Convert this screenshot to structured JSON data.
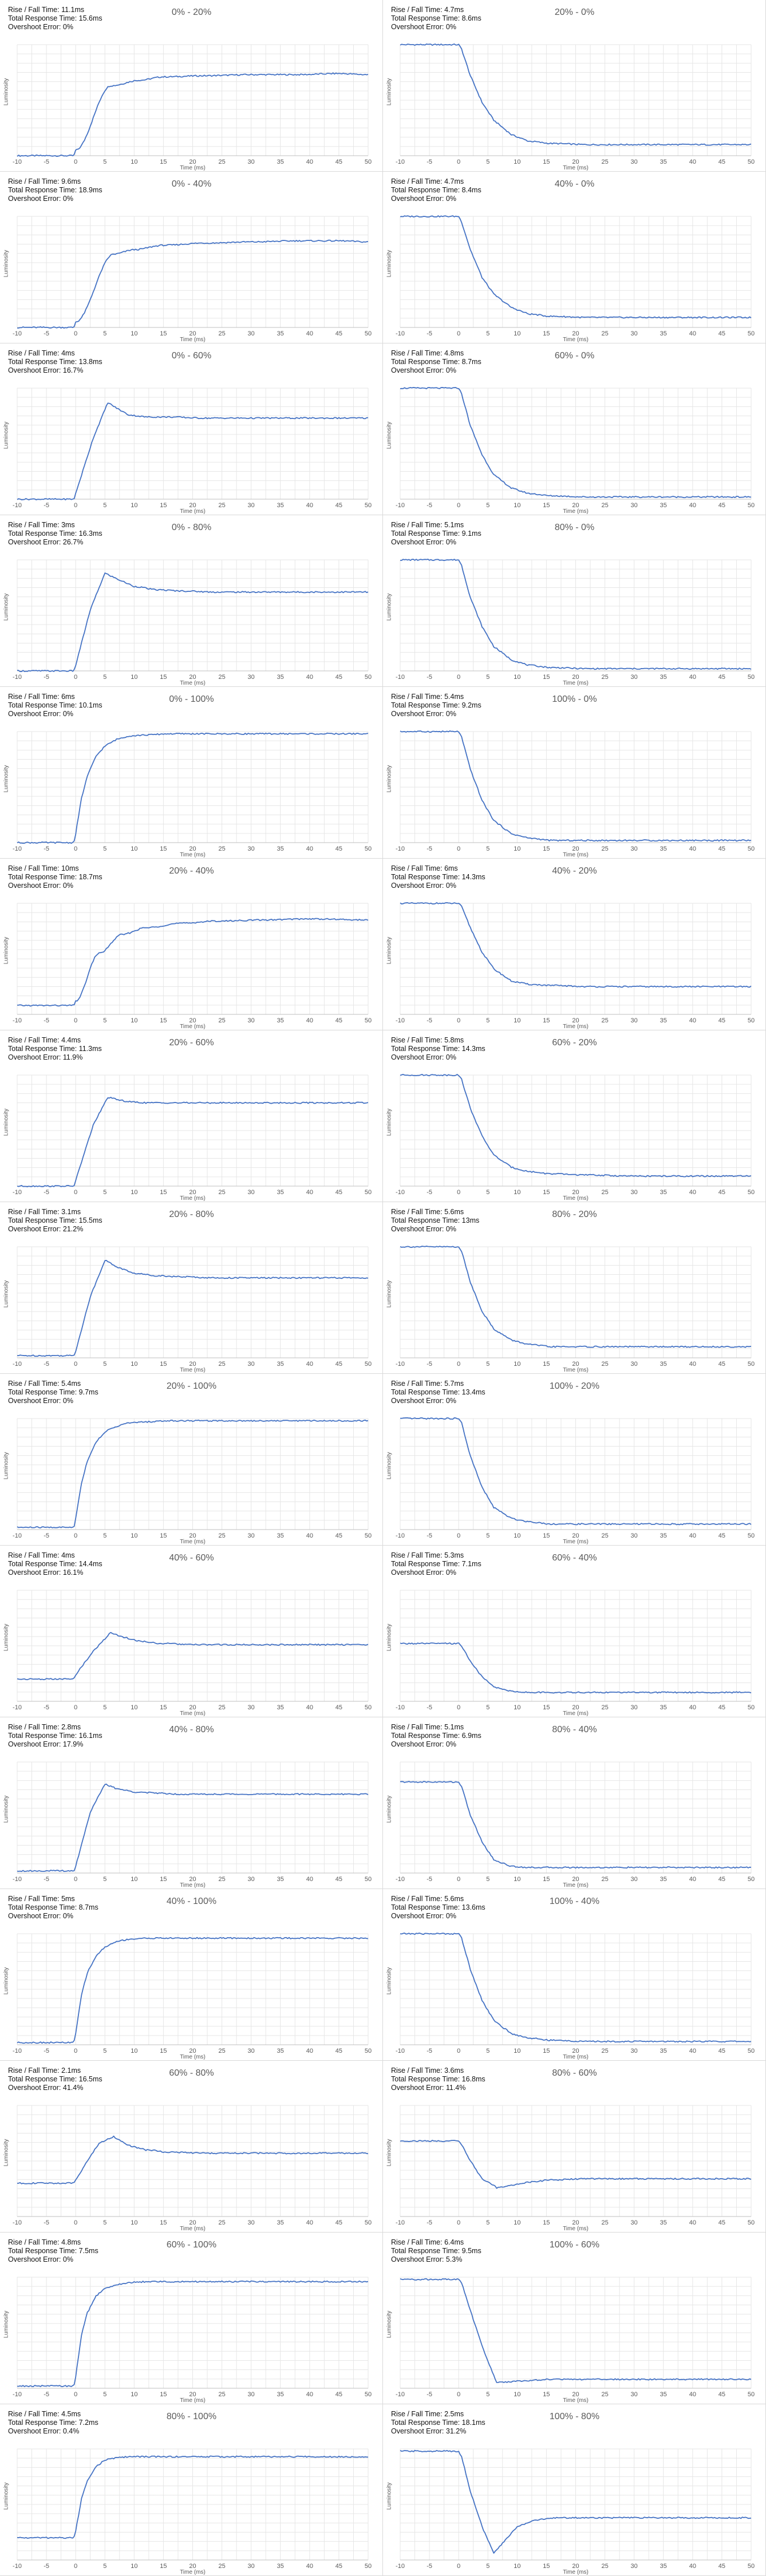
{
  "chart_common": {
    "type": "line",
    "xlabel": "Time (ms)",
    "ylabel": "Luminosity",
    "xlim": [
      -10,
      50
    ],
    "xticks": [
      -10,
      -5,
      0,
      5,
      10,
      15,
      20,
      25,
      30,
      35,
      40,
      45,
      50
    ],
    "grid": true,
    "line_color": "#4472c4"
  },
  "chart_data": [
    {
      "title": "0% - 20%",
      "stats": [
        "Rise / Fall Time: 11.1ms",
        "Total Response Time: 15.6ms",
        "Overshoot Error: 0%"
      ],
      "x": [
        -10,
        -0.3,
        0,
        6,
        11,
        15,
        22,
        30,
        38,
        45,
        50
      ],
      "values": [
        0,
        0,
        0.05,
        0.63,
        0.68,
        0.71,
        0.72,
        0.73,
        0.73,
        0.74,
        0.73
      ]
    },
    {
      "title": "20% - 0%",
      "stats": [
        "Rise / Fall Time: 4.7ms",
        "Total Response Time: 8.6ms",
        "Overshoot Error: 0%"
      ],
      "x": [
        -10,
        0,
        0.5,
        2,
        4,
        6,
        9,
        12,
        16,
        22,
        30,
        50
      ],
      "values": [
        1,
        1,
        0.96,
        0.72,
        0.48,
        0.32,
        0.19,
        0.13,
        0.11,
        0.1,
        0.1,
        0.1
      ]
    },
    {
      "title": "0% - 40%",
      "stats": [
        "Rise / Fall Time: 9.6ms",
        "Total Response Time: 18.9ms",
        "Overshoot Error: 0%"
      ],
      "x": [
        -10,
        -0.3,
        0,
        6.5,
        10,
        15,
        22,
        30,
        38,
        45,
        50
      ],
      "values": [
        0,
        0,
        0.05,
        0.66,
        0.7,
        0.74,
        0.76,
        0.77,
        0.78,
        0.78,
        0.77
      ]
    },
    {
      "title": "40% - 0%",
      "stats": [
        "Rise / Fall Time: 4.7ms",
        "Total Response Time: 8.4ms",
        "Overshoot Error: 0%"
      ],
      "x": [
        -10,
        0,
        0.5,
        2,
        4,
        6,
        9,
        12,
        16,
        22,
        30,
        50
      ],
      "values": [
        1,
        1,
        0.95,
        0.7,
        0.45,
        0.3,
        0.18,
        0.12,
        0.1,
        0.09,
        0.09,
        0.09
      ]
    },
    {
      "title": "0% - 60%",
      "stats": [
        "Rise / Fall Time: 4ms",
        "Total Response Time: 13.8ms",
        "Overshoot Error: 16.7%"
      ],
      "x": [
        -10,
        -0.3,
        0,
        3,
        5.5,
        7,
        9,
        12,
        16,
        22,
        30,
        50
      ],
      "values": [
        0,
        0,
        0.05,
        0.55,
        0.87,
        0.82,
        0.76,
        0.74,
        0.74,
        0.73,
        0.73,
        0.73
      ]
    },
    {
      "title": "60% - 0%",
      "stats": [
        "Rise / Fall Time: 4.8ms",
        "Total Response Time: 8.7ms",
        "Overshoot Error: 0%"
      ],
      "x": [
        -10,
        0,
        0.5,
        2,
        4,
        6,
        9,
        12,
        16,
        22,
        30,
        50
      ],
      "values": [
        1,
        1,
        0.95,
        0.66,
        0.4,
        0.22,
        0.1,
        0.05,
        0.03,
        0.02,
        0.02,
        0.02
      ]
    },
    {
      "title": "0% - 80%",
      "stats": [
        "Rise / Fall Time: 3ms",
        "Total Response Time: 16.3ms",
        "Overshoot Error: 26.7%"
      ],
      "x": [
        -10,
        -0.3,
        0,
        2.5,
        5,
        7,
        10,
        14,
        18,
        24,
        32,
        50
      ],
      "values": [
        0,
        0,
        0.05,
        0.55,
        0.88,
        0.83,
        0.76,
        0.73,
        0.72,
        0.71,
        0.71,
        0.71
      ]
    },
    {
      "title": "80% - 0%",
      "stats": [
        "Rise / Fall Time: 5.1ms",
        "Total Response Time: 9.1ms",
        "Overshoot Error: 0%"
      ],
      "x": [
        -10,
        0,
        0.5,
        2,
        4,
        6,
        9,
        12,
        16,
        22,
        30,
        50
      ],
      "values": [
        1,
        1,
        0.95,
        0.66,
        0.4,
        0.22,
        0.1,
        0.05,
        0.03,
        0.02,
        0.02,
        0.02
      ]
    },
    {
      "title": "0% - 100%",
      "stats": [
        "Rise / Fall Time: 6ms",
        "Total Response Time: 10.1ms",
        "Overshoot Error: 0%"
      ],
      "x": [
        -10,
        -0.3,
        0,
        1,
        2,
        3.5,
        5,
        7,
        9,
        12,
        16,
        22,
        50
      ],
      "values": [
        0,
        0,
        0.08,
        0.4,
        0.6,
        0.78,
        0.87,
        0.93,
        0.96,
        0.97,
        0.98,
        0.98,
        0.98
      ]
    },
    {
      "title": "100% - 0%",
      "stats": [
        "Rise / Fall Time: 5.4ms",
        "Total Response Time: 9.2ms",
        "Overshoot Error: 0%"
      ],
      "x": [
        -10,
        0,
        0.5,
        2,
        4,
        6,
        9,
        12,
        16,
        22,
        30,
        50
      ],
      "values": [
        1,
        1,
        0.95,
        0.66,
        0.38,
        0.2,
        0.08,
        0.04,
        0.02,
        0.02,
        0.02,
        0.02
      ]
    },
    {
      "title": "20% - 40%",
      "stats": [
        "Rise / Fall Time: 10ms",
        "Total Response Time: 18.7ms",
        "Overshoot Error: 0%"
      ],
      "x": [
        -10,
        -0.3,
        0,
        4,
        8,
        12,
        18,
        24,
        32,
        40,
        50
      ],
      "values": [
        0.08,
        0.08,
        0.12,
        0.55,
        0.72,
        0.78,
        0.82,
        0.84,
        0.85,
        0.86,
        0.85
      ]
    },
    {
      "title": "40% - 20%",
      "stats": [
        "Rise / Fall Time: 6ms",
        "Total Response Time: 14.3ms",
        "Overshoot Error: 0%"
      ],
      "x": [
        -10,
        0,
        0.5,
        2,
        4,
        6,
        9,
        12,
        16,
        22,
        30,
        50
      ],
      "values": [
        1,
        1,
        0.97,
        0.78,
        0.56,
        0.41,
        0.3,
        0.27,
        0.26,
        0.25,
        0.25,
        0.25
      ]
    },
    {
      "title": "20% - 60%",
      "stats": [
        "Rise / Fall Time: 4.4ms",
        "Total Response Time: 11.3ms",
        "Overshoot Error: 11.9%"
      ],
      "x": [
        -10,
        -0.3,
        0,
        3,
        5.5,
        7,
        9,
        12,
        16,
        22,
        30,
        50
      ],
      "values": [
        0,
        0,
        0.05,
        0.55,
        0.8,
        0.78,
        0.76,
        0.75,
        0.75,
        0.75,
        0.75,
        0.75
      ]
    },
    {
      "title": "60% - 20%",
      "stats": [
        "Rise / Fall Time: 5.8ms",
        "Total Response Time: 14.3ms",
        "Overshoot Error: 0%"
      ],
      "x": [
        -10,
        0,
        0.5,
        2,
        4,
        6,
        9,
        12,
        16,
        22,
        30,
        50
      ],
      "values": [
        1,
        1,
        0.96,
        0.7,
        0.45,
        0.28,
        0.17,
        0.13,
        0.11,
        0.1,
        0.09,
        0.09
      ]
    },
    {
      "title": "20% - 80%",
      "stats": [
        "Rise / Fall Time: 3.1ms",
        "Total Response Time: 15.5ms",
        "Overshoot Error: 21.2%"
      ],
      "x": [
        -10,
        -0.3,
        0,
        2.5,
        5,
        7,
        10,
        14,
        18,
        24,
        32,
        50
      ],
      "values": [
        0.02,
        0.02,
        0.06,
        0.55,
        0.88,
        0.82,
        0.76,
        0.74,
        0.73,
        0.72,
        0.72,
        0.72
      ]
    },
    {
      "title": "80% - 20%",
      "stats": [
        "Rise / Fall Time: 5.6ms",
        "Total Response Time: 13ms",
        "Overshoot Error: 0%"
      ],
      "x": [
        -10,
        0,
        0.5,
        2,
        4,
        6,
        9,
        12,
        16,
        22,
        30,
        50
      ],
      "values": [
        1,
        1,
        0.96,
        0.68,
        0.42,
        0.26,
        0.16,
        0.12,
        0.1,
        0.1,
        0.1,
        0.1
      ]
    },
    {
      "title": "20% - 100%",
      "stats": [
        "Rise / Fall Time: 5.4ms",
        "Total Response Time: 9.7ms",
        "Overshoot Error: 0%"
      ],
      "x": [
        -10,
        -0.3,
        0,
        1,
        2,
        3.5,
        5,
        7,
        9,
        12,
        16,
        22,
        50
      ],
      "values": [
        0.02,
        0.02,
        0.1,
        0.42,
        0.62,
        0.79,
        0.88,
        0.93,
        0.96,
        0.97,
        0.98,
        0.98,
        0.98
      ]
    },
    {
      "title": "100% - 20%",
      "stats": [
        "Rise / Fall Time: 5.7ms",
        "Total Response Time: 13.4ms",
        "Overshoot Error: 0%"
      ],
      "x": [
        -10,
        0,
        0.5,
        2,
        4,
        6,
        9,
        12,
        16,
        22,
        30,
        50
      ],
      "values": [
        1,
        1,
        0.96,
        0.66,
        0.38,
        0.2,
        0.1,
        0.07,
        0.05,
        0.05,
        0.05,
        0.05
      ]
    },
    {
      "title": "40% - 60%",
      "stats": [
        "Rise / Fall Time: 4ms",
        "Total Response Time: 14.4ms",
        "Overshoot Error: 16.1%"
      ],
      "x": [
        -10,
        -0.3,
        0,
        3,
        6,
        8,
        11,
        15,
        20,
        28,
        36,
        50
      ],
      "values": [
        0.2,
        0.2,
        0.24,
        0.45,
        0.62,
        0.58,
        0.54,
        0.52,
        0.51,
        0.51,
        0.51,
        0.51
      ]
    },
    {
      "title": "60% - 40%",
      "stats": [
        "Rise / Fall Time: 5.3ms",
        "Total Response Time: 7.1ms",
        "Overshoot Error: 0%"
      ],
      "x": [
        -10,
        0,
        0.5,
        2,
        4,
        6,
        9,
        12,
        16,
        22,
        30,
        50
      ],
      "values": [
        0.52,
        0.52,
        0.5,
        0.36,
        0.22,
        0.13,
        0.09,
        0.08,
        0.08,
        0.08,
        0.08,
        0.08
      ]
    },
    {
      "title": "40% - 80%",
      "stats": [
        "Rise / Fall Time: 2.8ms",
        "Total Response Time: 16.1ms",
        "Overshoot Error: 17.9%"
      ],
      "x": [
        -10,
        -0.3,
        0,
        2.5,
        5,
        7,
        10,
        14,
        18,
        24,
        32,
        50
      ],
      "values": [
        0.02,
        0.02,
        0.06,
        0.55,
        0.8,
        0.76,
        0.73,
        0.72,
        0.71,
        0.71,
        0.71,
        0.71
      ]
    },
    {
      "title": "80% - 40%",
      "stats": [
        "Rise / Fall Time: 5.1ms",
        "Total Response Time: 6.9ms",
        "Overshoot Error: 0%"
      ],
      "x": [
        -10,
        0,
        0.5,
        2,
        4,
        6,
        9,
        12,
        16,
        22,
        30,
        50
      ],
      "values": [
        0.82,
        0.82,
        0.78,
        0.52,
        0.28,
        0.12,
        0.06,
        0.05,
        0.05,
        0.05,
        0.05,
        0.05
      ]
    },
    {
      "title": "40% - 100%",
      "stats": [
        "Rise / Fall Time: 5ms",
        "Total Response Time: 8.7ms",
        "Overshoot Error: 0%"
      ],
      "x": [
        -10,
        -0.3,
        0,
        1,
        2,
        3.5,
        5,
        7,
        9,
        12,
        16,
        22,
        50
      ],
      "values": [
        0.02,
        0.02,
        0.1,
        0.45,
        0.65,
        0.8,
        0.88,
        0.93,
        0.95,
        0.96,
        0.96,
        0.96,
        0.96
      ]
    },
    {
      "title": "100% - 40%",
      "stats": [
        "Rise / Fall Time: 5.6ms",
        "Total Response Time: 13.6ms",
        "Overshoot Error: 0%"
      ],
      "x": [
        -10,
        0,
        0.5,
        2,
        4,
        6,
        9,
        12,
        16,
        22,
        30,
        50
      ],
      "values": [
        1,
        1,
        0.96,
        0.68,
        0.4,
        0.22,
        0.1,
        0.06,
        0.04,
        0.03,
        0.03,
        0.03
      ]
    },
    {
      "title": "60% - 80%",
      "stats": [
        "Rise / Fall Time: 2.1ms",
        "Total Response Time: 16.5ms",
        "Overshoot Error: 41.4%"
      ],
      "x": [
        -10,
        -0.3,
        0,
        2,
        4,
        6.5,
        9,
        12,
        16,
        22,
        30,
        50
      ],
      "values": [
        0.3,
        0.3,
        0.33,
        0.5,
        0.66,
        0.72,
        0.64,
        0.6,
        0.58,
        0.57,
        0.57,
        0.57
      ]
    },
    {
      "title": "80% - 60%",
      "stats": [
        "Rise / Fall Time: 3.6ms",
        "Total Response Time: 16.8ms",
        "Overshoot Error: 11.4%"
      ],
      "x": [
        -10,
        0,
        0.5,
        2,
        4,
        6.5,
        9,
        12,
        16,
        22,
        30,
        50
      ],
      "values": [
        0.68,
        0.68,
        0.65,
        0.5,
        0.34,
        0.26,
        0.28,
        0.31,
        0.33,
        0.34,
        0.34,
        0.34
      ]
    },
    {
      "title": "60% - 100%",
      "stats": [
        "Rise / Fall Time: 4.8ms",
        "Total Response Time: 7.5ms",
        "Overshoot Error: 0%"
      ],
      "x": [
        -10,
        -0.3,
        0,
        1,
        2,
        3.5,
        5,
        7,
        9,
        12,
        16,
        22,
        50
      ],
      "values": [
        0.02,
        0.02,
        0.1,
        0.48,
        0.68,
        0.83,
        0.9,
        0.93,
        0.95,
        0.96,
        0.96,
        0.96,
        0.96
      ]
    },
    {
      "title": "100% - 60%",
      "stats": [
        "Rise / Fall Time: 6.4ms",
        "Total Response Time: 9.5ms",
        "Overshoot Error: 5.3%"
      ],
      "x": [
        -10,
        0,
        0.5,
        2,
        4,
        6.5,
        9,
        12,
        16,
        22,
        30,
        50
      ],
      "values": [
        0.98,
        0.98,
        0.95,
        0.7,
        0.38,
        0.05,
        0.06,
        0.07,
        0.08,
        0.08,
        0.08,
        0.08
      ]
    },
    {
      "title": "80% - 100%",
      "stats": [
        "Rise / Fall Time: 4.5ms",
        "Total Response Time: 7.2ms",
        "Overshoot Error: 0.4%"
      ],
      "x": [
        -10,
        -0.3,
        0,
        1,
        2,
        3.5,
        5,
        7,
        9,
        12,
        16,
        22,
        50
      ],
      "values": [
        0.2,
        0.2,
        0.26,
        0.55,
        0.72,
        0.84,
        0.9,
        0.92,
        0.93,
        0.93,
        0.93,
        0.93,
        0.93
      ]
    },
    {
      "title": "100% - 80%",
      "stats": [
        "Rise / Fall Time: 2.5ms",
        "Total Response Time: 18.1ms",
        "Overshoot Error: 31.2%"
      ],
      "x": [
        -10,
        0,
        0.5,
        2,
        4,
        6,
        8,
        10,
        13,
        17,
        22,
        30,
        50
      ],
      "values": [
        0.98,
        0.98,
        0.93,
        0.62,
        0.3,
        0.06,
        0.18,
        0.3,
        0.36,
        0.38,
        0.38,
        0.38,
        0.38
      ]
    }
  ]
}
